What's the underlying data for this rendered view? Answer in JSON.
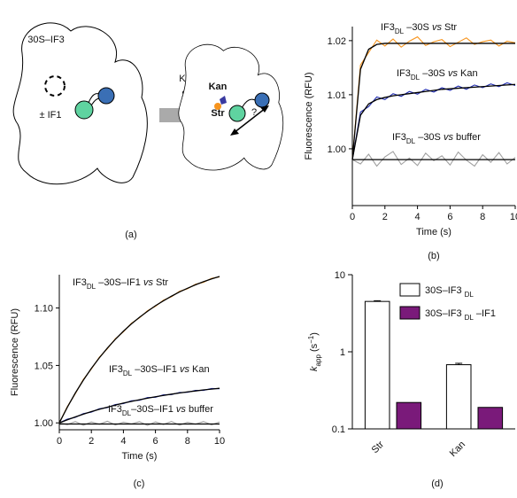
{
  "diagram": {
    "label_complex": "30S–IF3",
    "label_if1": "± IF1",
    "arrow_top": "Kan",
    "arrow_bottom": "Str",
    "bound_kan": "Kan",
    "bound_str": "Str",
    "question": "?",
    "panel_label": "(a)"
  },
  "chart_data": [
    {
      "type": "line",
      "panel_label": "(b)",
      "xlabel": "Time (s)",
      "ylabel": "Fluorescence  (RFU)",
      "x": [
        0,
        0.5,
        1,
        1.5,
        2,
        2.5,
        3,
        3.5,
        4,
        4.5,
        5,
        5.5,
        6,
        6.5,
        7,
        7.5,
        8,
        8.5,
        9,
        9.5,
        10
      ],
      "xlim": [
        0,
        10
      ],
      "xticks": [
        0,
        2,
        4,
        6,
        8,
        10
      ],
      "ylim": [
        0.9895,
        1.0226
      ],
      "yticks": [
        {
          "value": 1,
          "label": "1.00"
        },
        1.01,
        1.02
      ],
      "series": [
        {
          "color": "#f7941d",
          "values": [
            0.998,
            1.0155,
            1.0178,
            1.0201,
            1.019,
            1.0203,
            1.0188,
            1.0199,
            1.0207,
            1.0191,
            1.0198,
            1.0202,
            1.0189,
            1.0197,
            1.0205,
            1.0193,
            1.0198,
            1.0201,
            1.019,
            1.0199,
            1.0196
          ]
        },
        {
          "color": "#1f2bb0",
          "values": [
            0.998,
            1.0068,
            1.0078,
            1.0096,
            1.0091,
            1.0102,
            1.0097,
            1.0106,
            1.0101,
            1.011,
            1.0105,
            1.0113,
            1.0108,
            1.0116,
            1.011,
            1.0118,
            1.0113,
            1.012,
            1.0115,
            1.0122,
            1.0117
          ]
        },
        {
          "color": "#a0a0a0",
          "values": [
            0.998,
            0.9972,
            0.999,
            0.9968,
            0.9985,
            0.9995,
            0.9971,
            0.9983,
            0.9969,
            0.9992,
            0.9978,
            0.9987,
            0.997,
            0.9994,
            0.9979,
            0.9968,
            0.9989,
            0.9975,
            0.9993,
            0.9972,
            0.9984
          ]
        },
        {
          "color": "#000000",
          "values": [
            0.998,
            1.0147,
            1.0184,
            1.0193,
            1.0195,
            1.0195,
            1.0195,
            1.0195,
            1.0195,
            1.0195,
            1.0195,
            1.0195,
            1.0195,
            1.0195,
            1.0195,
            1.0195,
            1.0195,
            1.0195,
            1.0195,
            1.0195,
            1.0195
          ]
        },
        {
          "color": "#000000",
          "values": [
            0.998,
            1.0062,
            1.0083,
            1.0091,
            1.0095,
            1.0098,
            1.01,
            1.0102,
            1.0104,
            1.0106,
            1.0108,
            1.011,
            1.0111,
            1.0112,
            1.0113,
            1.0114,
            1.0115,
            1.0116,
            1.0117,
            1.0118,
            1.0119
          ]
        },
        {
          "color": "#000000",
          "values": [
            0.998,
            0.998,
            0.998,
            0.998,
            0.998,
            0.998,
            0.998,
            0.998,
            0.998,
            0.998,
            0.998,
            0.998,
            0.998,
            0.998,
            0.998,
            0.998,
            0.998,
            0.998,
            0.998,
            0.998,
            0.998
          ]
        }
      ],
      "annotations": [
        {
          "text": "IF3",
          "sub": "DL",
          "after": " –30S ",
          "em": "vs",
          "end": " Str"
        },
        {
          "text": "IF3",
          "sub": "DL",
          "after": " –30S ",
          "em": "vs",
          "end": " Kan"
        },
        {
          "text": "IF3",
          "sub": "DL",
          "after": " –30S ",
          "em": "vs",
          "end": " buffer"
        }
      ]
    },
    {
      "type": "line",
      "panel_label": "(c)",
      "xlabel": "Time (s)",
      "ylabel": "Fluorescence  (RFU)",
      "x": [
        0,
        0.5,
        1,
        1.5,
        2,
        2.5,
        3,
        3.5,
        4,
        4.5,
        5,
        5.5,
        6,
        6.5,
        7,
        7.5,
        8,
        8.5,
        9,
        9.5,
        10
      ],
      "xlim": [
        0,
        10
      ],
      "xticks": [
        0,
        2,
        4,
        6,
        8,
        10
      ],
      "ylim": [
        0.994,
        1.129
      ],
      "yticks": [
        {
          "value": 1,
          "label": "1.00"
        },
        1.05,
        {
          "value": 1.1,
          "label": "1.10"
        }
      ],
      "series": [
        {
          "color": "#f7941d",
          "values": [
            1,
            1.0141,
            1.0255,
            1.0378,
            1.0469,
            1.0572,
            1.0646,
            1.0733,
            1.0793,
            1.0867,
            1.0914,
            1.0976,
            1.1015,
            1.1068,
            1.1098,
            1.1145,
            1.1168,
            1.1207,
            1.1224,
            1.1258,
            1.1271
          ]
        },
        {
          "color": "#1f2bb0",
          "values": [
            1,
            1.0032,
            1.0048,
            1.0081,
            1.0094,
            1.0123,
            1.0133,
            1.016,
            1.0168,
            1.0192,
            1.0197,
            1.022,
            1.0223,
            1.0244,
            1.0246,
            1.0265,
            1.0266,
            1.0283,
            1.0283,
            1.0299,
            1.0297
          ]
        },
        {
          "color": "#a0a0a0",
          "values": [
            1,
            0.9985,
            1.0012,
            0.9979,
            1.0008,
            0.9988,
            1.0014,
            0.9982,
            1.0006,
            0.9991,
            1.0011,
            0.9978,
            1.0009,
            0.9986,
            1.0013,
            0.998,
            1.0005,
            0.9989,
            1.0012,
            0.9983,
            1.0007
          ]
        },
        {
          "color": "#000000",
          "values": [
            1,
            1.0136,
            1.026,
            1.0372,
            1.0474,
            1.0567,
            1.0651,
            1.0728,
            1.0798,
            1.0862,
            1.0919,
            1.0971,
            1.102,
            1.1063,
            1.1103,
            1.114,
            1.1172,
            1.1202,
            1.1229,
            1.1253,
            1.1275
          ]
        },
        {
          "color": "#000000",
          "values": [
            1,
            1.0027,
            1.0052,
            1.0076,
            1.0098,
            1.0118,
            1.0137,
            1.0155,
            1.0172,
            1.0187,
            1.0201,
            1.0215,
            1.0227,
            1.0239,
            1.025,
            1.026,
            1.027,
            1.0278,
            1.0287,
            1.0294,
            1.0301
          ]
        },
        {
          "color": "#000000",
          "values": [
            0.999,
            0.999,
            0.999,
            0.999,
            0.999,
            0.999,
            0.999,
            0.999,
            0.999,
            0.999,
            0.999,
            0.999,
            0.999,
            0.999,
            0.999,
            0.999,
            0.999,
            0.999,
            0.999,
            0.999,
            0.999
          ]
        }
      ],
      "annotations": [
        {
          "text": "IF3",
          "sub": "DL",
          "after": " –30S–IF1 ",
          "em": "vs",
          "end": " Str"
        },
        {
          "text": "IF3",
          "sub": "DL",
          "after": " –30S–IF1 ",
          "em": "vs",
          "end": " Kan"
        },
        {
          "text": "IF3",
          "sub": "DL",
          "after": "–30S–IF1 ",
          "em": "vs",
          "end": " buffer"
        }
      ]
    },
    {
      "type": "bar",
      "panel_label": "(d)",
      "log": true,
      "ylabel": {
        "em": "k",
        "sub": "app",
        "after": " (s",
        "sup": "−1",
        "end": ")"
      },
      "categories": [
        "Str",
        "Kan"
      ],
      "ylim": [
        0.1,
        10
      ],
      "yticks": [
        0.1,
        1,
        10
      ],
      "series": [
        {
          "name": {
            "text": "30S–IF3 ",
            "sub": "DL"
          },
          "color": "#ffffff",
          "values": [
            4.5,
            0.68
          ],
          "errors": [
            0.1,
            0.03
          ]
        },
        {
          "name": {
            "text": "30S–IF3 ",
            "sub": "DL",
            "after": " –IF1"
          },
          "color": "#7a1a7a",
          "values": [
            0.22,
            0.19
          ]
        }
      ]
    }
  ]
}
